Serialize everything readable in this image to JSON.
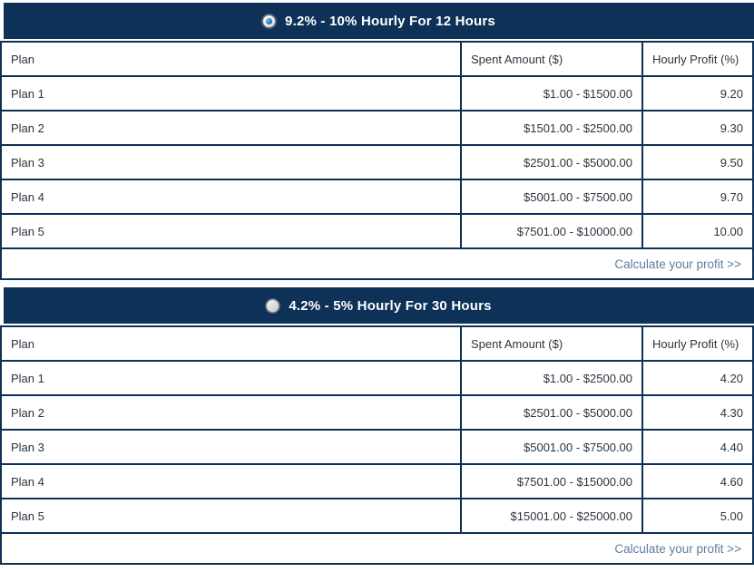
{
  "colors": {
    "navy_header": "#0d3157",
    "table_border": "#0d3157",
    "body_text": "#2b3440",
    "title_text": "#ffffff",
    "link_text": "#5c7d9d",
    "radio_dot_blue": "#3386c6"
  },
  "sections": [
    {
      "title": "9.2% - 10% Hourly For 12 Hours",
      "radio_selected": true,
      "columns": [
        "Plan",
        "Spent Amount ($)",
        "Hourly Profit (%)"
      ],
      "rows": [
        {
          "plan": "Plan 1",
          "spent": "$1.00 - $1500.00",
          "profit": "9.20"
        },
        {
          "plan": "Plan 2",
          "spent": "$1501.00 - $2500.00",
          "profit": "9.30"
        },
        {
          "plan": "Plan 3",
          "spent": "$2501.00 - $5000.00",
          "profit": "9.50"
        },
        {
          "plan": "Plan 4",
          "spent": "$5001.00 - $7500.00",
          "profit": "9.70"
        },
        {
          "plan": "Plan 5",
          "spent": "$7501.00 - $10000.00",
          "profit": "10.00"
        }
      ],
      "footer_link": "Calculate your profit >>"
    },
    {
      "title": "4.2% - 5% Hourly For 30 Hours",
      "radio_selected": false,
      "columns": [
        "Plan",
        "Spent Amount ($)",
        "Hourly Profit (%)"
      ],
      "rows": [
        {
          "plan": "Plan 1",
          "spent": "$1.00 - $2500.00",
          "profit": "4.20"
        },
        {
          "plan": "Plan 2",
          "spent": "$2501.00 - $5000.00",
          "profit": "4.30"
        },
        {
          "plan": "Plan 3",
          "spent": "$5001.00 - $7500.00",
          "profit": "4.40"
        },
        {
          "plan": "Plan 4",
          "spent": "$7501.00 - $15000.00",
          "profit": "4.60"
        },
        {
          "plan": "Plan 5",
          "spent": "$15001.00 - $25000.00",
          "profit": "5.00"
        }
      ],
      "footer_link": "Calculate your profit >>"
    }
  ]
}
